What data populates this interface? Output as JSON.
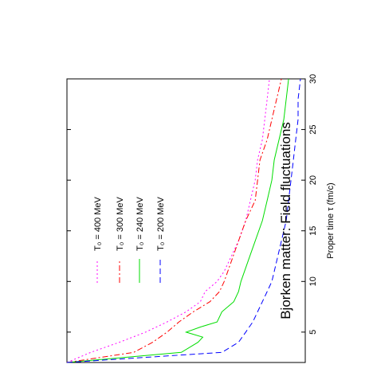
{
  "chart_data": {
    "type": "line",
    "title": "Bjorken matter: Field fluctuations",
    "xlabel": "Proper time τ (fm/c)",
    "xlim": [
      2.0,
      30.0
    ],
    "xticks": [
      5,
      10,
      15,
      20,
      25,
      30
    ],
    "grid": false,
    "legend_position": "upper-middle",
    "series": [
      {
        "name": "T₀ = 400 MeV",
        "color": "#ff00ff",
        "dash": "dotted",
        "x": [
          2.0,
          3.0,
          4.0,
          5.0,
          6.0,
          7.0,
          8.0,
          9.0,
          10.0,
          11.0,
          12.0,
          14.0,
          16.0,
          18.0,
          20.0,
          22.0,
          24.0,
          26.0,
          28.0,
          30.0
        ],
        "y": [
          0.0,
          0.1,
          0.22,
          0.33,
          0.42,
          0.5,
          0.56,
          0.58,
          0.63,
          0.66,
          0.68,
          0.72,
          0.75,
          0.77,
          0.79,
          0.8,
          0.82,
          0.83,
          0.84,
          0.85
        ]
      },
      {
        "name": "T₀ = 300 MeV",
        "color": "#ff0000",
        "dash": "dashdot",
        "x": [
          2.0,
          3.0,
          4.0,
          5.0,
          6.0,
          7.0,
          8.0,
          9.0,
          10.0,
          12.0,
          14.0,
          16.0,
          18.0,
          20.0,
          22.0,
          24.0,
          26.0,
          28.0,
          30.0
        ],
        "y": [
          0.0,
          0.28,
          0.36,
          0.42,
          0.47,
          0.53,
          0.6,
          0.64,
          0.66,
          0.69,
          0.72,
          0.75,
          0.79,
          0.8,
          0.81,
          0.84,
          0.86,
          0.88,
          0.9
        ]
      },
      {
        "name": "T₀ = 240 MeV",
        "color": "#00dd00",
        "dash": "solid",
        "x": [
          2.0,
          3.0,
          4.0,
          4.5,
          5.0,
          5.5,
          6.0,
          7.0,
          8.0,
          9.0,
          10.0,
          12.0,
          14.0,
          16.0,
          18.0,
          20.0,
          22.0,
          24.0,
          26.0,
          28.0,
          30.0
        ],
        "y": [
          0.0,
          0.48,
          0.55,
          0.57,
          0.5,
          0.56,
          0.63,
          0.65,
          0.7,
          0.72,
          0.73,
          0.76,
          0.79,
          0.82,
          0.84,
          0.86,
          0.87,
          0.89,
          0.91,
          0.92,
          0.93
        ]
      },
      {
        "name": "T₀ = 200 MeV",
        "color": "#0000ff",
        "dash": "dashed",
        "x": [
          2.0,
          3.0,
          4.0,
          5.0,
          6.0,
          7.0,
          8.0,
          9.0,
          10.0,
          12.0,
          14.0,
          16.0,
          18.0,
          20.0,
          22.0,
          24.0,
          26.0,
          28.0,
          30.0
        ],
        "y": [
          0.0,
          0.65,
          0.72,
          0.75,
          0.78,
          0.8,
          0.82,
          0.84,
          0.86,
          0.88,
          0.9,
          0.92,
          0.93,
          0.94,
          0.95,
          0.96,
          0.97,
          0.97,
          0.98
        ]
      }
    ]
  }
}
